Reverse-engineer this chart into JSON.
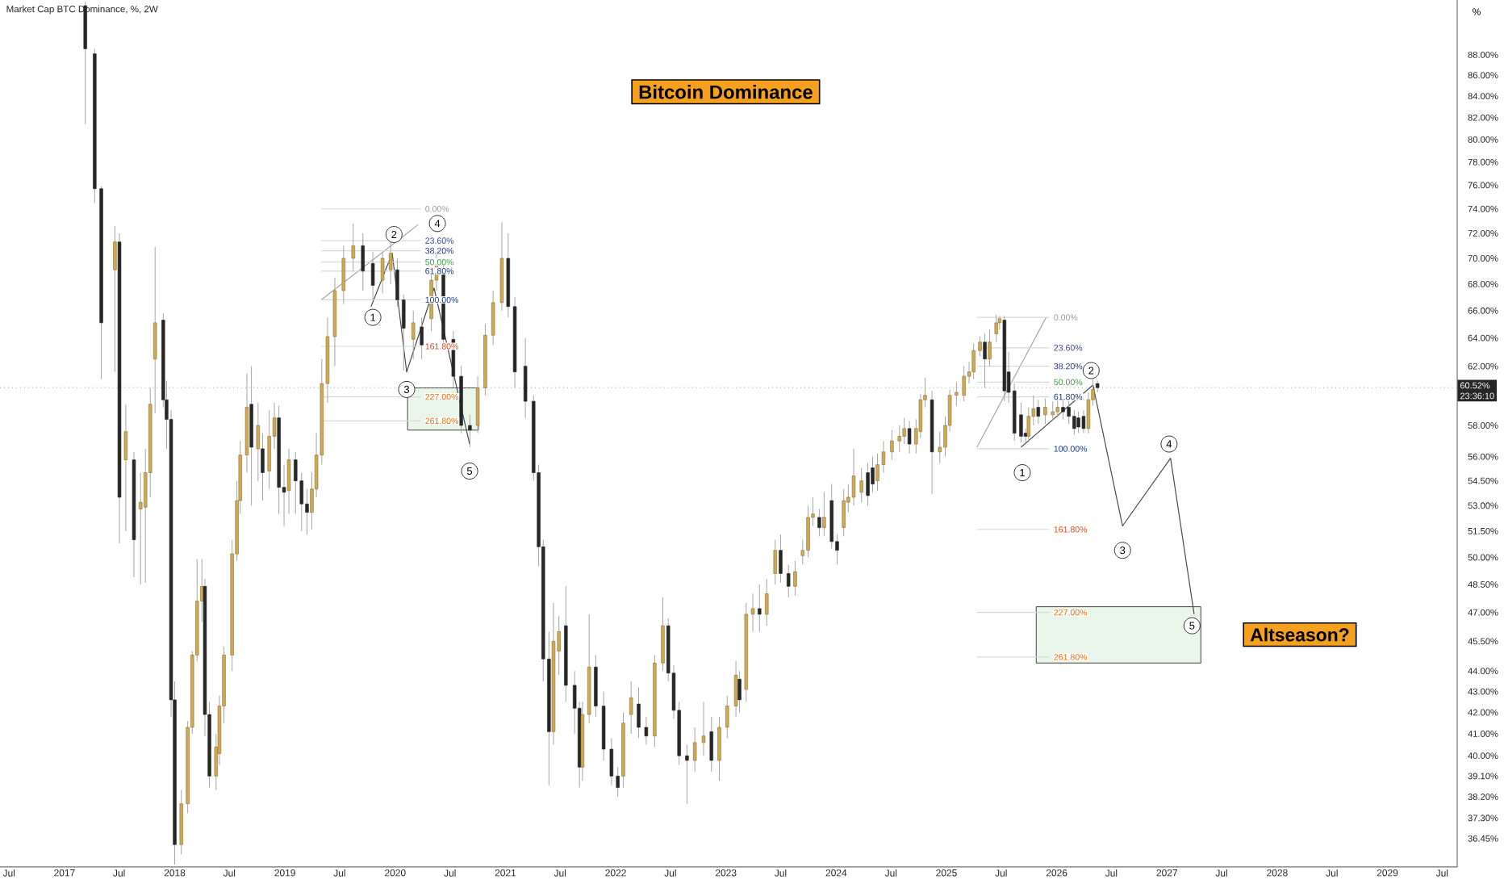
{
  "chart_data": {
    "type": "candlestick",
    "title": "Bitcoin Dominance",
    "subtitle": "Market Cap BTC Dominance, %, 2W",
    "ylabel": "%",
    "log": "y",
    "xlim": [
      "2016-06-01",
      "2029-08-20"
    ],
    "ylim": [
      35.3,
      93.6
    ],
    "xticks": [
      {
        "value": "2016-07-01",
        "label": "Jul"
      },
      {
        "value": "2017-01-01",
        "label": "2017"
      },
      {
        "value": "2017-07-01",
        "label": "Jul"
      },
      {
        "value": "2018-01-01",
        "label": "2018"
      },
      {
        "value": "2018-07-01",
        "label": "Jul"
      },
      {
        "value": "2019-01-01",
        "label": "2019"
      },
      {
        "value": "2019-07-01",
        "label": "Jul"
      },
      {
        "value": "2020-01-01",
        "label": "2020"
      },
      {
        "value": "2020-07-01",
        "label": "Jul"
      },
      {
        "value": "2021-01-01",
        "label": "2021"
      },
      {
        "value": "2021-07-01",
        "label": "Jul"
      },
      {
        "value": "2022-01-01",
        "label": "2022"
      },
      {
        "value": "2022-07-01",
        "label": "Jul"
      },
      {
        "value": "2023-01-01",
        "label": "2023"
      },
      {
        "value": "2023-07-01",
        "label": "Jul"
      },
      {
        "value": "2024-01-01",
        "label": "2024"
      },
      {
        "value": "2024-07-01",
        "label": "Jul"
      },
      {
        "value": "2025-01-01",
        "label": "2025"
      },
      {
        "value": "2025-07-01",
        "label": "Jul"
      },
      {
        "value": "2026-01-01",
        "label": "2026"
      },
      {
        "value": "2026-07-01",
        "label": "Jul"
      },
      {
        "value": "2027-01-01",
        "label": "2027"
      },
      {
        "value": "2027-07-01",
        "label": "Jul"
      },
      {
        "value": "2028-01-01",
        "label": "2028"
      },
      {
        "value": "2028-07-01",
        "label": "Jul"
      },
      {
        "value": "2029-01-01",
        "label": "2029"
      },
      {
        "value": "2029-07-01",
        "label": "Jul"
      }
    ],
    "yticks": [
      {
        "value": 88,
        "label": "88.00%"
      },
      {
        "value": 86,
        "label": "86.00%"
      },
      {
        "value": 84,
        "label": "84.00%"
      },
      {
        "value": 82,
        "label": "82.00%"
      },
      {
        "value": 80,
        "label": "80.00%"
      },
      {
        "value": 78,
        "label": "78.00%"
      },
      {
        "value": 76,
        "label": "76.00%"
      },
      {
        "value": 74,
        "label": "74.00%"
      },
      {
        "value": 72,
        "label": "72.00%"
      },
      {
        "value": 70,
        "label": "70.00%"
      },
      {
        "value": 68,
        "label": "68.00%"
      },
      {
        "value": 66,
        "label": "66.00%"
      },
      {
        "value": 64,
        "label": "64.00%"
      },
      {
        "value": 62,
        "label": "62.00%"
      },
      {
        "value": 58,
        "label": "58.00%"
      },
      {
        "value": 56,
        "label": "56.00%"
      },
      {
        "value": 54.5,
        "label": "54.50%"
      },
      {
        "value": 53,
        "label": "53.00%"
      },
      {
        "value": 51.5,
        "label": "51.50%"
      },
      {
        "value": 50,
        "label": "50.00%"
      },
      {
        "value": 48.5,
        "label": "48.50%"
      },
      {
        "value": 47,
        "label": "47.00%"
      },
      {
        "value": 45.5,
        "label": "45.50%"
      },
      {
        "value": 44,
        "label": "44.00%"
      },
      {
        "value": 43,
        "label": "43.00%"
      },
      {
        "value": 42,
        "label": "42.00%"
      },
      {
        "value": 41,
        "label": "41.00%"
      },
      {
        "value": 40,
        "label": "40.00%"
      },
      {
        "value": 39.1,
        "label": "39.10%"
      },
      {
        "value": 38.2,
        "label": "38.20%"
      },
      {
        "value": 37.3,
        "label": "37.30%"
      },
      {
        "value": 36.45,
        "label": "36.45%"
      }
    ],
    "x": [
      "2017-03-11",
      "2017-04-11",
      "2017-05-03",
      "2017-06-17",
      "2017-07-02",
      "2017-07-23",
      "2017-08-19",
      "2017-09-10",
      "2017-09-26",
      "2017-10-12",
      "2017-10-28",
      "2017-11-24",
      "2017-12-05",
      "2017-12-20",
      "2018-01-01",
      "2018-01-23",
      "2018-02-13",
      "2018-02-28",
      "2018-03-16",
      "2018-04-01",
      "2018-04-11",
      "2018-04-26",
      "2018-05-18",
      "2018-05-29",
      "2018-06-13",
      "2018-07-10",
      "2018-07-26",
      "2018-08-06",
      "2018-08-28",
      "2018-09-12",
      "2018-10-04",
      "2018-10-19",
      "2018-11-10",
      "2018-11-27",
      "2018-12-12",
      "2018-12-29",
      "2019-01-14",
      "2019-02-05",
      "2019-02-25",
      "2019-03-15",
      "2019-03-31",
      "2019-04-15",
      "2019-05-03",
      "2019-05-22",
      "2019-06-15",
      "2019-07-14",
      "2019-08-15",
      "2019-09-16",
      "2019-10-19",
      "2019-11-20",
      "2019-12-17",
      "2020-01-08",
      "2020-01-29",
      "2020-03-01",
      "2020-03-29",
      "2020-04-30",
      "2020-05-17",
      "2020-06-09",
      "2020-07-12",
      "2020-08-07",
      "2020-09-05",
      "2020-10-01",
      "2020-10-26",
      "2020-11-21",
      "2020-12-20",
      "2021-01-10",
      "2021-02-01",
      "2021-03-08",
      "2021-04-04",
      "2021-04-21",
      "2021-05-06",
      "2021-05-25",
      "2021-06-09",
      "2021-06-27",
      "2021-07-20",
      "2021-08-18",
      "2021-09-03",
      "2021-09-13",
      "2021-10-05",
      "2021-10-27",
      "2021-11-22",
      "2021-12-18",
      "2022-01-08",
      "2022-01-26",
      "2022-02-21",
      "2022-03-18",
      "2022-04-12",
      "2022-05-10",
      "2022-06-06",
      "2022-06-24",
      "2022-07-12",
      "2022-07-30",
      "2022-08-25",
      "2022-09-20",
      "2022-10-19",
      "2022-11-14",
      "2022-12-10",
      "2023-01-05",
      "2023-02-03",
      "2023-02-15",
      "2023-03-09",
      "2023-03-31",
      "2023-04-22",
      "2023-05-16",
      "2023-06-13",
      "2023-07-01",
      "2023-07-27",
      "2023-08-18",
      "2023-09-12",
      "2023-09-30",
      "2023-10-16",
      "2023-11-06",
      "2023-11-22",
      "2023-12-17",
      "2024-01-04",
      "2024-01-26",
      "2024-02-10",
      "2024-02-28",
      "2024-03-25",
      "2024-04-15",
      "2024-05-01",
      "2024-05-17",
      "2024-06-06",
      "2024-07-04",
      "2024-07-29",
      "2024-08-14",
      "2024-08-31",
      "2024-09-22",
      "2024-10-07",
      "2024-10-22",
      "2024-11-14",
      "2024-12-10",
      "2024-12-28",
      "2025-01-12",
      "2025-02-03",
      "2025-02-28",
      "2025-03-17",
      "2025-04-01",
      "2025-04-22",
      "2025-05-08",
      "2025-05-24",
      "2025-06-15",
      "2025-06-26",
      "2025-07-12",
      "2025-07-26",
      "2025-08-14",
      "2025-09-05",
      "2025-09-20",
      "2025-09-30",
      "2025-10-16",
      "2025-11-01",
      "2025-11-24",
      "2025-12-19",
      "2026-01-04",
      "2026-01-22",
      "2026-02-10",
      "2026-02-28",
      "2026-03-14",
      "2026-03-31",
      "2026-04-16",
      "2026-05-01",
      "2026-05-16"
    ],
    "ohlc": [
      [
        93.0,
        93.4,
        81.4,
        88.6
      ],
      [
        88.1,
        88.6,
        74.5,
        75.7
      ],
      [
        75.7,
        75.9,
        61.1,
        65.1
      ],
      [
        69.1,
        72.6,
        61.6,
        71.3
      ],
      [
        71.3,
        72.0,
        50.8,
        53.5
      ],
      [
        55.8,
        59.4,
        51.5,
        57.6
      ],
      [
        55.8,
        56.3,
        48.9,
        51.0
      ],
      [
        52.8,
        55.0,
        48.5,
        53.2
      ],
      [
        52.9,
        56.5,
        48.6,
        55.0
      ],
      [
        55.0,
        60.5,
        53.5,
        59.4
      ],
      [
        62.5,
        70.9,
        58.8,
        65.1
      ],
      [
        65.3,
        65.8,
        59.2,
        59.7
      ],
      [
        59.7,
        61.0,
        56.5,
        58.4
      ],
      [
        58.4,
        59.0,
        41.8,
        42.6
      ],
      [
        42.6,
        43.5,
        35.4,
        36.2
      ],
      [
        36.2,
        38.5,
        35.8,
        37.9
      ],
      [
        37.9,
        41.6,
        37.5,
        41.3
      ],
      [
        41.3,
        45.0,
        41.0,
        44.8
      ],
      [
        44.8,
        49.9,
        44.5,
        47.6
      ],
      [
        47.6,
        49.9,
        46.5,
        48.4
      ],
      [
        48.4,
        48.8,
        40.9,
        41.9
      ],
      [
        41.9,
        42.5,
        38.6,
        39.1
      ],
      [
        39.1,
        41.0,
        38.5,
        40.4
      ],
      [
        40.1,
        42.8,
        39.6,
        42.3
      ],
      [
        42.3,
        45.2,
        41.5,
        44.8
      ],
      [
        44.8,
        51.0,
        44.0,
        50.2
      ],
      [
        50.2,
        54.5,
        49.8,
        53.3
      ],
      [
        53.3,
        57.0,
        52.5,
        56.1
      ],
      [
        56.1,
        61.5,
        55.0,
        59.2
      ],
      [
        59.4,
        62.0,
        53.0,
        56.6
      ],
      [
        56.5,
        59.5,
        54.5,
        58.0
      ],
      [
        56.5,
        57.5,
        53.3,
        55.0
      ],
      [
        55.1,
        59.0,
        54.0,
        57.3
      ],
      [
        57.3,
        59.5,
        56.5,
        58.5
      ],
      [
        58.5,
        59.3,
        52.5,
        54.1
      ],
      [
        54.1,
        55.5,
        51.8,
        53.8
      ],
      [
        53.9,
        56.5,
        52.5,
        55.8
      ],
      [
        55.8,
        56.3,
        52.5,
        54.5
      ],
      [
        54.5,
        55.0,
        51.5,
        53.1
      ],
      [
        53.1,
        54.0,
        51.3,
        52.6
      ],
      [
        52.6,
        55.0,
        51.6,
        54.0
      ],
      [
        54.0,
        57.5,
        53.5,
        56.1
      ],
      [
        56.1,
        62.5,
        55.5,
        60.8
      ],
      [
        60.8,
        65.5,
        59.5,
        64.1
      ],
      [
        64.1,
        68.5,
        62.0,
        67.5
      ],
      [
        67.5,
        71.0,
        66.5,
        70.0
      ],
      [
        70.0,
        72.8,
        69.0,
        71.0
      ],
      [
        71.0,
        72.0,
        67.5,
        69.0
      ],
      [
        69.6,
        70.5,
        66.8,
        67.9
      ],
      [
        68.3,
        70.5,
        67.3,
        70.0
      ],
      [
        69.1,
        71.5,
        68.0,
        70.4
      ],
      [
        69.1,
        70.0,
        66.3,
        66.8
      ],
      [
        66.8,
        67.2,
        61.7,
        64.7
      ],
      [
        63.9,
        66.0,
        62.5,
        65.1
      ],
      [
        64.8,
        65.5,
        62.5,
        63.5
      ],
      [
        65.4,
        69.0,
        64.5,
        68.3
      ],
      [
        68.3,
        70.8,
        67.5,
        69.7
      ],
      [
        69.1,
        70.0,
        63.5,
        63.9
      ],
      [
        63.9,
        64.5,
        60.5,
        61.3
      ],
      [
        61.3,
        62.0,
        57.5,
        58.0
      ],
      [
        58.0,
        58.7,
        56.6,
        57.7
      ],
      [
        58.0,
        61.3,
        57.5,
        60.5
      ],
      [
        60.5,
        65.0,
        60.0,
        64.2
      ],
      [
        64.2,
        67.5,
        63.5,
        66.6
      ],
      [
        66.6,
        72.9,
        66.0,
        70.0
      ],
      [
        70.0,
        72.0,
        65.5,
        66.3
      ],
      [
        66.3,
        67.0,
        60.5,
        61.6
      ],
      [
        62.0,
        64.0,
        58.5,
        59.6
      ],
      [
        59.6,
        60.0,
        54.5,
        55.0
      ],
      [
        55.0,
        55.5,
        49.5,
        50.6
      ],
      [
        50.6,
        51.0,
        43.5,
        44.6
      ],
      [
        44.6,
        46.0,
        38.7,
        41.1
      ],
      [
        41.1,
        47.5,
        40.5,
        45.5
      ],
      [
        45.0,
        46.8,
        43.8,
        46.0
      ],
      [
        46.3,
        48.4,
        42.5,
        43.3
      ],
      [
        43.3,
        44.0,
        41.0,
        42.2
      ],
      [
        42.2,
        42.5,
        38.6,
        39.5
      ],
      [
        39.5,
        42.5,
        38.9,
        41.9
      ],
      [
        41.9,
        46.9,
        41.5,
        44.2
      ],
      [
        44.2,
        44.8,
        41.8,
        42.3
      ],
      [
        42.3,
        43.0,
        39.8,
        40.3
      ],
      [
        40.3,
        40.8,
        38.7,
        39.1
      ],
      [
        39.1,
        39.5,
        38.2,
        38.6
      ],
      [
        39.1,
        42.0,
        38.6,
        41.5
      ],
      [
        41.9,
        43.5,
        41.0,
        42.7
      ],
      [
        42.4,
        43.2,
        40.8,
        41.3
      ],
      [
        41.3,
        41.8,
        40.5,
        40.9
      ],
      [
        40.9,
        44.8,
        40.4,
        44.4
      ],
      [
        44.4,
        47.8,
        44.0,
        46.3
      ],
      [
        46.3,
        46.7,
        43.5,
        43.9
      ],
      [
        43.9,
        44.3,
        41.7,
        42.1
      ],
      [
        42.1,
        42.5,
        39.6,
        40.0
      ],
      [
        40.0,
        40.5,
        37.9,
        39.8
      ],
      [
        39.8,
        41.3,
        39.3,
        40.6
      ],
      [
        40.6,
        42.5,
        40.0,
        40.9
      ],
      [
        41.1,
        41.8,
        39.3,
        39.8
      ],
      [
        39.8,
        41.8,
        38.9,
        41.3
      ],
      [
        41.3,
        42.8,
        40.8,
        42.3
      ],
      [
        42.3,
        44.5,
        41.8,
        43.8
      ],
      [
        43.6,
        44.0,
        42.0,
        42.6
      ],
      [
        43.1,
        47.5,
        42.5,
        46.9
      ],
      [
        46.9,
        48.0,
        46.0,
        47.2
      ],
      [
        47.2,
        48.5,
        46.0,
        46.9
      ],
      [
        46.9,
        48.8,
        46.3,
        48.0
      ],
      [
        49.1,
        51.0,
        48.5,
        50.4
      ],
      [
        50.4,
        51.3,
        48.6,
        49.1
      ],
      [
        49.1,
        49.6,
        47.8,
        48.4
      ],
      [
        48.4,
        49.8,
        47.9,
        49.2
      ],
      [
        50.1,
        51.0,
        49.6,
        50.4
      ],
      [
        50.4,
        53.0,
        50.0,
        52.3
      ],
      [
        52.3,
        53.5,
        51.8,
        52.5
      ],
      [
        52.3,
        52.8,
        51.2,
        51.7
      ],
      [
        51.7,
        53.8,
        51.2,
        52.3
      ],
      [
        53.3,
        54.3,
        50.5,
        50.9
      ],
      [
        50.9,
        51.3,
        49.6,
        50.4
      ],
      [
        51.7,
        54.0,
        51.2,
        53.3
      ],
      [
        53.2,
        54.3,
        52.6,
        53.5
      ],
      [
        53.5,
        56.5,
        53.0,
        54.8
      ],
      [
        53.8,
        55.3,
        53.2,
        54.5
      ],
      [
        55.0,
        55.6,
        53.0,
        53.6
      ],
      [
        55.3,
        56.0,
        53.8,
        54.3
      ],
      [
        54.5,
        56.2,
        53.9,
        55.5
      ],
      [
        55.5,
        57.0,
        55.0,
        56.3
      ],
      [
        56.3,
        57.7,
        55.8,
        57.0
      ],
      [
        57.0,
        58.0,
        56.3,
        57.3
      ],
      [
        57.3,
        58.5,
        56.8,
        57.8
      ],
      [
        57.8,
        58.3,
        56.2,
        56.8
      ],
      [
        56.8,
        58.4,
        56.2,
        57.8
      ],
      [
        57.6,
        60.1,
        57.2,
        59.7
      ],
      [
        59.7,
        61.2,
        59.2,
        60.0
      ],
      [
        59.7,
        60.3,
        53.7,
        56.3
      ],
      [
        56.3,
        57.6,
        55.6,
        56.6
      ],
      [
        56.6,
        58.6,
        56.0,
        58.0
      ],
      [
        58.0,
        60.4,
        57.6,
        60.0
      ],
      [
        60.0,
        60.9,
        59.3,
        60.2
      ],
      [
        60.0,
        62.0,
        59.6,
        61.3
      ],
      [
        61.3,
        62.3,
        60.8,
        61.6
      ],
      [
        61.6,
        63.6,
        61.1,
        63.1
      ],
      [
        63.1,
        64.1,
        62.7,
        63.7
      ],
      [
        63.7,
        64.3,
        60.5,
        62.5
      ],
      [
        62.5,
        64.6,
        62.0,
        63.7
      ],
      [
        64.3,
        65.7,
        63.7,
        65.1
      ],
      [
        65.1,
        65.6,
        64.6,
        65.4
      ],
      [
        65.3,
        65.6,
        59.6,
        60.3
      ],
      [
        61.6,
        63.0,
        59.5,
        60.2
      ],
      [
        60.3,
        60.8,
        57.0,
        57.5
      ],
      [
        58.7,
        59.5,
        56.9,
        57.3
      ],
      [
        57.5,
        57.8,
        56.9,
        57.3
      ],
      [
        57.3,
        59.2,
        56.9,
        58.6
      ],
      [
        58.6,
        60.0,
        58.0,
        59.1
      ],
      [
        59.2,
        59.7,
        58.1,
        58.6
      ],
      [
        58.7,
        59.8,
        58.1,
        59.2
      ],
      [
        58.7,
        59.6,
        58.3,
        58.9
      ],
      [
        58.9,
        59.9,
        58.5,
        59.2
      ],
      [
        59.2,
        59.9,
        58.4,
        58.9
      ],
      [
        59.2,
        59.6,
        58.1,
        58.6
      ],
      [
        58.6,
        59.0,
        57.4,
        57.8
      ],
      [
        58.5,
        58.9,
        57.5,
        57.9
      ],
      [
        58.6,
        59.0,
        57.5,
        57.8
      ],
      [
        57.8,
        60.2,
        57.5,
        59.7
      ],
      [
        59.7,
        61.1,
        59.3,
        60.4
      ],
      [
        60.8,
        61.0,
        60.2,
        60.52
      ]
    ],
    "series": [
      {
        "type": "line",
        "x": [
          "2019-10-13",
          "2019-12-22",
          "2020-02-08",
          "2020-05-09",
          "2020-09-04"
        ],
        "values": [
          66.3,
          70.4,
          61.6,
          67.7,
          56.8
        ],
        "color": "#4d4d4d"
      },
      {
        "type": "line",
        "x": [
          "2025-09-05",
          "2026-05-01",
          "2026-08-07",
          "2027-01-13",
          "2027-04-01"
        ],
        "values": [
          56.6,
          60.7,
          51.8,
          55.9,
          46.9
        ],
        "color": "#4d4d4d"
      },
      {
        "type": "line",
        "x": [
          "2019-05-01",
          "2020-03-17"
        ],
        "values": [
          66.8,
          72.7
        ],
        "color": "#a8a8a8"
      },
      {
        "type": "line",
        "x": [
          "2025-04-12",
          "2025-11-27"
        ],
        "values": [
          56.6,
          65.5
        ],
        "color": "#a8a8a8"
      },
      {
        "type": "line",
        "name": "0.00%",
        "x": [
          "2019-05-01",
          "2020-03-26"
        ],
        "values": [
          74.0,
          74.0
        ],
        "color": "#d9d9d9"
      },
      {
        "type": "line",
        "name": "23.60%",
        "x": [
          "2019-05-01",
          "2020-03-26"
        ],
        "values": [
          71.4,
          71.4
        ],
        "color": "#d9d9d9"
      },
      {
        "type": "line",
        "name": "38.20%",
        "x": [
          "2019-05-01",
          "2020-03-26"
        ],
        "values": [
          70.6,
          70.6
        ],
        "color": "#d9d9d9"
      },
      {
        "type": "line",
        "name": "50.00%",
        "x": [
          "2019-05-01",
          "2020-03-26"
        ],
        "values": [
          69.7,
          69.7
        ],
        "color": "#d9d9d9"
      },
      {
        "type": "line",
        "name": "61.80%",
        "x": [
          "2019-05-01",
          "2020-03-26"
        ],
        "values": [
          69.0,
          69.0
        ],
        "color": "#d9d9d9"
      },
      {
        "type": "line",
        "name": "100.00%",
        "x": [
          "2019-05-01",
          "2020-03-26"
        ],
        "values": [
          66.8,
          66.8
        ],
        "color": "#d9d9d9"
      },
      {
        "type": "line",
        "name": "161.80%",
        "x": [
          "2019-05-01",
          "2020-03-26"
        ],
        "values": [
          63.4,
          63.4
        ],
        "color": "#d9d9d9"
      },
      {
        "type": "line",
        "name": "227.00%",
        "x": [
          "2019-05-01",
          "2020-03-26"
        ],
        "values": [
          59.9,
          59.9
        ],
        "color": "#d9d9d9"
      },
      {
        "type": "line",
        "name": "261.80%",
        "x": [
          "2019-05-01",
          "2020-03-26"
        ],
        "values": [
          58.3,
          58.3
        ],
        "color": "#d9d9d9"
      },
      {
        "type": "line",
        "name": "0.00%",
        "x": [
          "2025-04-12",
          "2025-12-08"
        ],
        "values": [
          65.5,
          65.5
        ],
        "color": "#d9d9d9"
      },
      {
        "type": "line",
        "name": "23.60%",
        "x": [
          "2025-04-12",
          "2025-12-08"
        ],
        "values": [
          63.3,
          63.3
        ],
        "color": "#d9d9d9"
      },
      {
        "type": "line",
        "name": "38.20%",
        "x": [
          "2025-04-12",
          "2025-12-08"
        ],
        "values": [
          62.0,
          62.0
        ],
        "color": "#d9d9d9"
      },
      {
        "type": "line",
        "name": "50.00%",
        "x": [
          "2025-04-12",
          "2025-12-08"
        ],
        "values": [
          60.9,
          60.9
        ],
        "color": "#d9d9d9"
      },
      {
        "type": "line",
        "name": "61.80%",
        "x": [
          "2025-04-12",
          "2025-12-08"
        ],
        "values": [
          59.9,
          59.9
        ],
        "color": "#d9d9d9"
      },
      {
        "type": "line",
        "name": "100.00%",
        "x": [
          "2025-04-12",
          "2025-12-08"
        ],
        "values": [
          56.5,
          56.5
        ],
        "color": "#d9d9d9"
      },
      {
        "type": "line",
        "name": "161.80%",
        "x": [
          "2025-04-12",
          "2025-12-08"
        ],
        "values": [
          51.6,
          51.6
        ],
        "color": "#d9d9d9"
      },
      {
        "type": "line",
        "name": "227.00%",
        "x": [
          "2025-04-12",
          "2025-12-08"
        ],
        "values": [
          47.0,
          47.0
        ],
        "color": "#d9d9d9"
      },
      {
        "type": "line",
        "name": "261.80%",
        "x": [
          "2025-04-12",
          "2025-12-08"
        ],
        "values": [
          44.7,
          44.7
        ],
        "color": "#d9d9d9"
      }
    ],
    "bands": [
      {
        "axis": "y",
        "from": 57.7,
        "to": 60.5,
        "color": "#eaf6ea"
      },
      {
        "axis": "y",
        "from": 44.4,
        "to": 47.3,
        "color": "#eaf6ea"
      }
    ],
    "ref_lines": [
      {
        "axis": "y",
        "value": 60.52,
        "label": "60.52%",
        "color": "#9e9e9e",
        "line_style": "dotted"
      }
    ],
    "annotations": [
      "Altseason?",
      "23:36:10",
      {
        "text": "1",
        "x": "2019-10-19",
        "y": 65.5
      },
      {
        "text": "2",
        "x": "2019-12-28",
        "y": 71.9
      },
      {
        "text": "3",
        "x": "2020-02-08",
        "y": 60.4
      },
      {
        "text": "4",
        "x": "2020-05-20",
        "y": 72.8
      },
      {
        "text": "5",
        "x": "2020-09-04",
        "y": 55.1
      },
      {
        "text": "1",
        "x": "2025-09-09",
        "y": 55.0
      },
      {
        "text": "2",
        "x": "2026-04-25",
        "y": 61.7
      },
      {
        "text": "3",
        "x": "2026-08-07",
        "y": 50.4
      },
      {
        "text": "4",
        "x": "2027-01-08",
        "y": 56.8
      },
      {
        "text": "5",
        "x": "2027-03-25",
        "y": 46.3
      }
    ]
  }
}
